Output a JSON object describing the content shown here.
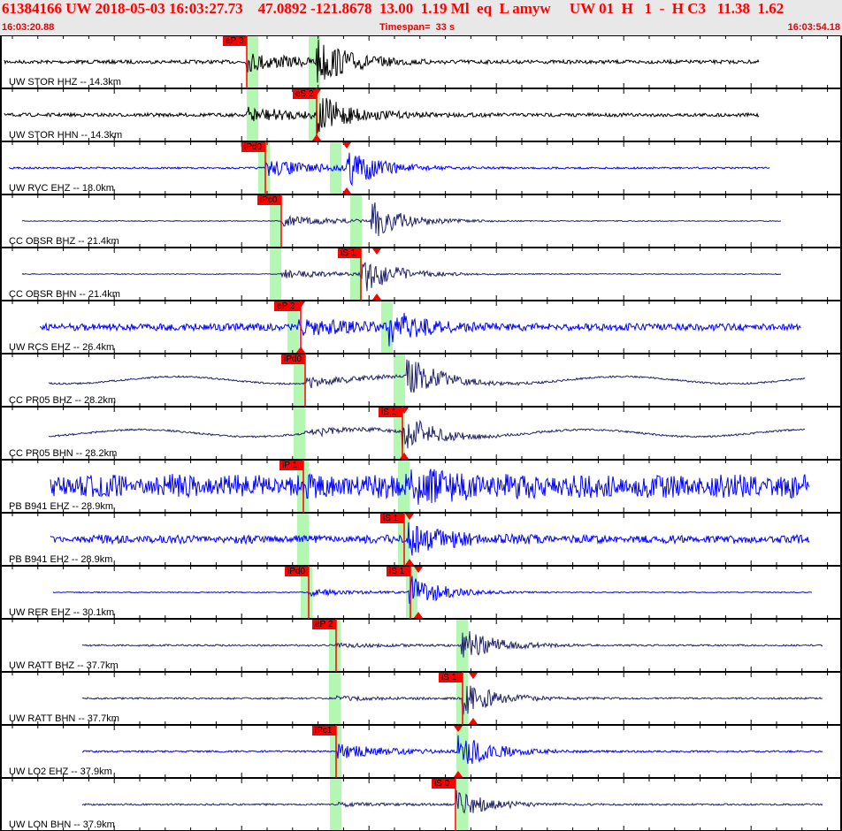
{
  "header": {
    "title": "61384166 UW 2018-05-03 16:03:27.73    47.0892 -121.8678  13.00  1.19 Ml  eq  L amyw     UW 01  H   1  -  H C3   11.38  1.62",
    "start_time": "16:03:20.88",
    "timespan": "Timespan=  33 s",
    "end_time": "16:03:54.18"
  },
  "colors": {
    "header_bg": "#e8e8e8",
    "header_text": "#ff0000",
    "pick": "#ff0000",
    "window": "#b3f7b3",
    "broadband": "#22226a",
    "short_period": "#0000ff",
    "strong": "#000000"
  },
  "channels": [
    {
      "label": "UW STOR HHZ -- 14.3km",
      "picks": [
        "eP 3"
      ]
    },
    {
      "label": "UW STOR HHN -- 14.3km",
      "picks": [
        "eS 2"
      ]
    },
    {
      "label": "UW RVC EHZ -- 18.0km",
      "picks": [
        "iPd0"
      ]
    },
    {
      "label": "CC OBSR BHZ -- 21.4km",
      "picks": [
        "iPc0"
      ]
    },
    {
      "label": "CC OBSR BHN -- 21.4km",
      "picks": [
        "iS 1"
      ]
    },
    {
      "label": "UW RCS EHZ -- 26.4km",
      "picks": [
        "eP 2"
      ]
    },
    {
      "label": "CC PR05 BHZ -- 28.2km",
      "picks": [
        "iPd0"
      ]
    },
    {
      "label": "CC PR05 BHN -- 28.2km",
      "picks": [
        "iS 1"
      ]
    },
    {
      "label": "PB B941 EHZ -- 28.9km",
      "picks": [
        "iP 1"
      ]
    },
    {
      "label": "PB B941 EH2 -- 28.9km",
      "picks": [
        "iS 1"
      ]
    },
    {
      "label": "UW RER EHZ -- 30.1km",
      "picks": [
        "iPd0",
        "iS 1"
      ]
    },
    {
      "label": "UW RATT BHZ -- 37.7km",
      "picks": [
        "eP 2"
      ]
    },
    {
      "label": "UW RATT BHN -- 37.7km",
      "picks": [
        "iS 1"
      ]
    },
    {
      "label": "UW LO2 EHZ -- 37.9km",
      "picks": [
        "iPc1"
      ]
    },
    {
      "label": "UW LON BHN -- 37.9km",
      "picks": [
        "iS 0"
      ]
    }
  ]
}
